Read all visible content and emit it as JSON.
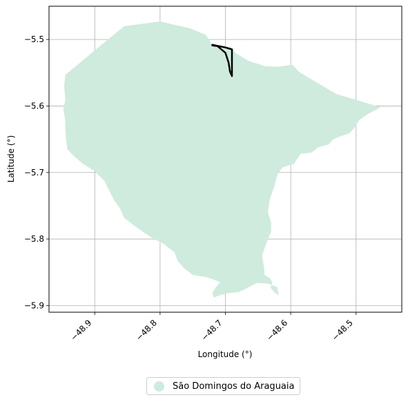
{
  "chart_data": {
    "type": "map",
    "xlabel": "Longitude (°)",
    "ylabel": "Latitude (°)",
    "xlim": [
      -48.97,
      -48.43
    ],
    "ylim": [
      -5.91,
      -5.45
    ],
    "x_ticks": [
      -48.9,
      -48.8,
      -48.7,
      -48.6,
      -48.5
    ],
    "x_tick_labels": [
      "−48.9",
      "−48.8",
      "−48.7",
      "−48.6",
      "−48.5"
    ],
    "y_ticks": [
      -5.5,
      -5.6,
      -5.7,
      -5.8,
      -5.9
    ],
    "y_tick_labels": [
      "−5.5",
      "−5.6",
      "−5.7",
      "−5.8",
      "−5.9"
    ],
    "grid": true,
    "legend_position": "bottom-center",
    "layers": [
      {
        "name": "São Domingos do Araguaia",
        "kind": "polygon",
        "color": "#cfebdd",
        "coordinates": [
          [
            -48.945,
            -5.553
          ],
          [
            -48.855,
            -5.48
          ],
          [
            -48.8,
            -5.473
          ],
          [
            -48.755,
            -5.483
          ],
          [
            -48.73,
            -5.493
          ],
          [
            -48.72,
            -5.508
          ],
          [
            -48.69,
            -5.512
          ],
          [
            -48.685,
            -5.52
          ],
          [
            -48.665,
            -5.532
          ],
          [
            -48.64,
            -5.54
          ],
          [
            -48.62,
            -5.541
          ],
          [
            -48.597,
            -5.538
          ],
          [
            -48.587,
            -5.549
          ],
          [
            -48.57,
            -5.559
          ],
          [
            -48.53,
            -5.582
          ],
          [
            -48.462,
            -5.602
          ],
          [
            -48.482,
            -5.612
          ],
          [
            -48.495,
            -5.621
          ],
          [
            -48.502,
            -5.632
          ],
          [
            -48.51,
            -5.641
          ],
          [
            -48.522,
            -5.645
          ],
          [
            -48.535,
            -5.65
          ],
          [
            -48.542,
            -5.658
          ],
          [
            -48.558,
            -5.662
          ],
          [
            -48.568,
            -5.67
          ],
          [
            -48.585,
            -5.672
          ],
          [
            -48.595,
            -5.687
          ],
          [
            -48.612,
            -5.692
          ],
          [
            -48.62,
            -5.702
          ],
          [
            -48.625,
            -5.72
          ],
          [
            -48.632,
            -5.74
          ],
          [
            -48.635,
            -5.76
          ],
          [
            -48.63,
            -5.775
          ],
          [
            -48.63,
            -5.789
          ],
          [
            -48.638,
            -5.808
          ],
          [
            -48.644,
            -5.825
          ],
          [
            -48.641,
            -5.841
          ],
          [
            -48.64,
            -5.854
          ],
          [
            -48.632,
            -5.859
          ],
          [
            -48.628,
            -5.865
          ],
          [
            -48.631,
            -5.873
          ],
          [
            -48.625,
            -5.88
          ],
          [
            -48.618,
            -5.885
          ],
          [
            -48.621,
            -5.872
          ],
          [
            -48.635,
            -5.867
          ],
          [
            -48.652,
            -5.866
          ],
          [
            -48.667,
            -5.874
          ],
          [
            -48.68,
            -5.88
          ],
          [
            -48.695,
            -5.881
          ],
          [
            -48.707,
            -5.884
          ],
          [
            -48.718,
            -5.888
          ],
          [
            -48.72,
            -5.881
          ],
          [
            -48.715,
            -5.873
          ],
          [
            -48.708,
            -5.865
          ],
          [
            -48.715,
            -5.862
          ],
          [
            -48.73,
            -5.857
          ],
          [
            -48.75,
            -5.854
          ],
          [
            -48.763,
            -5.844
          ],
          [
            -48.773,
            -5.833
          ],
          [
            -48.778,
            -5.82
          ],
          [
            -48.795,
            -5.807
          ],
          [
            -48.813,
            -5.798
          ],
          [
            -48.828,
            -5.788
          ],
          [
            -48.842,
            -5.778
          ],
          [
            -48.855,
            -5.768
          ],
          [
            -48.862,
            -5.753
          ],
          [
            -48.87,
            -5.742
          ],
          [
            -48.878,
            -5.727
          ],
          [
            -48.885,
            -5.713
          ],
          [
            -48.9,
            -5.698
          ],
          [
            -48.918,
            -5.687
          ],
          [
            -48.932,
            -5.675
          ],
          [
            -48.942,
            -5.665
          ],
          [
            -48.944,
            -5.65
          ],
          [
            -48.945,
            -5.635
          ],
          [
            -48.945,
            -5.623
          ],
          [
            -48.948,
            -5.605
          ],
          [
            -48.945,
            -5.59
          ],
          [
            -48.947,
            -5.57
          ],
          [
            -48.945,
            -5.553
          ]
        ]
      },
      {
        "name": "",
        "kind": "line",
        "color": "#000000",
        "coordinates": [
          [
            -48.72,
            -5.508
          ],
          [
            -48.7,
            -5.512
          ],
          [
            -48.69,
            -5.515
          ],
          [
            -48.69,
            -5.555
          ],
          [
            -48.693,
            -5.548
          ],
          [
            -48.695,
            -5.535
          ],
          [
            -48.7,
            -5.52
          ],
          [
            -48.712,
            -5.51
          ],
          [
            -48.72,
            -5.509
          ]
        ]
      }
    ]
  }
}
